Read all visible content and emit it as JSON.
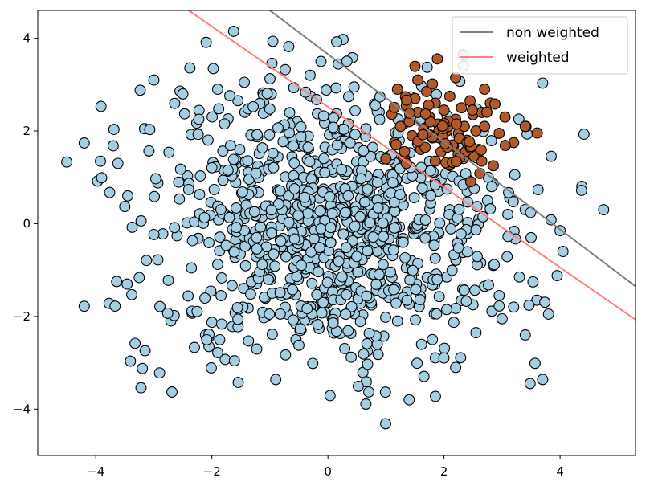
{
  "chart_data": {
    "type": "scatter",
    "title": "",
    "xlabel": "",
    "ylabel": "",
    "xlim": [
      -5.0,
      5.3
    ],
    "ylim": [
      -5.0,
      4.6
    ],
    "x_ticks": [
      -4,
      -2,
      0,
      2,
      4
    ],
    "y_ticks": [
      -4,
      -2,
      0,
      2,
      4
    ],
    "x_tick_labels": [
      "−4",
      "−2",
      "0",
      "2",
      "4"
    ],
    "y_tick_labels": [
      "−4",
      "−2",
      "0",
      "2",
      "4"
    ],
    "grid": false,
    "legend_position": "top-right",
    "colors": {
      "class_0": "#a6cee3",
      "class_1": "#b15928",
      "non_weighted": "#808080",
      "weighted": "#ff7f7f"
    },
    "lines": [
      {
        "name": "non weighted",
        "points": [
          [
            -1.0,
            4.6
          ],
          [
            5.3,
            -1.35
          ]
        ]
      },
      {
        "name": "weighted",
        "points": [
          [
            -2.4,
            4.6
          ],
          [
            5.3,
            -2.07
          ]
        ]
      }
    ],
    "series": [
      {
        "name": "",
        "class": 0,
        "n_points": 1000,
        "center": [
          0.0,
          0.0
        ],
        "std": 1.5,
        "points": [
          [
            -4.5,
            1.33
          ],
          [
            -4.2,
            1.74
          ],
          [
            -4.2,
            -1.78
          ],
          [
            -3.97,
            0.92
          ],
          [
            -3.9,
            0.99
          ],
          [
            -3.77,
            -1.72
          ],
          [
            -3.7,
            1.68
          ],
          [
            -3.62,
            1.3
          ],
          [
            -3.5,
            0.37
          ],
          [
            -3.45,
            0.6
          ],
          [
            -3.38,
            -1.53
          ],
          [
            -3.22,
            0.06
          ],
          [
            -3.16,
            2.05
          ],
          [
            -3.15,
            -2.74
          ],
          [
            -3.0,
            3.1
          ],
          [
            -2.93,
            -0.78
          ],
          [
            -2.93,
            0.88
          ],
          [
            -2.75,
            -1.22
          ],
          [
            -2.6,
            -0.26
          ],
          [
            -2.55,
            2.86
          ],
          [
            -2.5,
            2.8
          ],
          [
            -2.42,
            1.03
          ],
          [
            -2.38,
            3.36
          ],
          [
            -2.34,
            -1.93
          ],
          [
            -2.3,
            -2.67
          ],
          [
            -2.26,
            2.17
          ],
          [
            -2.21,
            0.63
          ],
          [
            -2.11,
            -2.4
          ],
          [
            -2.05,
            -2.65
          ],
          [
            -1.98,
            1.32
          ],
          [
            -1.9,
            2.9
          ],
          [
            -1.83,
            -1.17
          ],
          [
            -1.77,
            -2.93
          ],
          [
            -1.72,
            2.26
          ],
          [
            -1.6,
            -1.92
          ],
          [
            -1.52,
            1.6
          ],
          [
            -1.44,
            3.05
          ],
          [
            -1.3,
            -0.43
          ],
          [
            -1.18,
            0.15
          ],
          [
            -1.12,
            2.82
          ],
          [
            -1.05,
            2.42
          ],
          [
            -1.0,
            -0.83
          ],
          [
            -0.94,
            1.36
          ],
          [
            -0.9,
            -3.36
          ],
          [
            -0.87,
            0.73
          ],
          [
            -0.8,
            -1.55
          ],
          [
            -0.73,
            -2.83
          ],
          [
            -0.66,
            1.74
          ],
          [
            -0.6,
            -0.17
          ],
          [
            -0.55,
            -2.5
          ],
          [
            -0.5,
            1.15
          ],
          [
            -0.45,
            0.45
          ],
          [
            -0.4,
            -1.06
          ],
          [
            -0.35,
            -2.08
          ],
          [
            -0.3,
            2.75
          ],
          [
            -0.25,
            0.94
          ],
          [
            -0.2,
            -0.5
          ],
          [
            -0.12,
            3.5
          ],
          [
            -0.1,
            -1.58
          ],
          [
            -0.05,
            1.65
          ],
          [
            0.0,
            0.2
          ],
          [
            0.05,
            -0.88
          ],
          [
            0.1,
            -2.36
          ],
          [
            0.15,
            2.37
          ],
          [
            0.2,
            0.66
          ],
          [
            0.25,
            -1.3
          ],
          [
            0.3,
            1.06
          ],
          [
            0.35,
            -0.22
          ],
          [
            0.4,
            -2.88
          ],
          [
            0.45,
            2.95
          ],
          [
            0.5,
            -0.62
          ],
          [
            0.55,
            0.98
          ],
          [
            0.6,
            -1.97
          ],
          [
            0.65,
            1.88
          ],
          [
            0.7,
            0.33
          ],
          [
            0.75,
            -1.08
          ],
          [
            0.8,
            2.58
          ],
          [
            0.85,
            -2.6
          ],
          [
            0.9,
            0.09
          ],
          [
            0.95,
            1.4
          ],
          [
            1.0,
            -0.46
          ],
          [
            1.05,
            -1.59
          ],
          [
            1.1,
            0.8
          ],
          [
            1.2,
            -2.1
          ],
          [
            1.25,
            0.45
          ],
          [
            1.3,
            2.15
          ],
          [
            1.35,
            -0.95
          ],
          [
            1.4,
            -3.8
          ],
          [
            1.5,
            1.1
          ],
          [
            1.55,
            -0.2
          ],
          [
            1.6,
            -1.4
          ],
          [
            1.7,
            0.65
          ],
          [
            1.8,
            -2.5
          ],
          [
            1.85,
            -0.75
          ],
          [
            1.95,
            0.95
          ],
          [
            2.05,
            -1.15
          ],
          [
            2.1,
            0.3
          ],
          [
            2.2,
            -3.1
          ],
          [
            2.3,
            -0.35
          ],
          [
            2.4,
            0.7
          ],
          [
            2.5,
            -1.75
          ],
          [
            2.55,
            -2.35
          ],
          [
            2.6,
            0.1
          ],
          [
            2.7,
            -1.35
          ],
          [
            2.75,
            0.5
          ],
          [
            2.85,
            -0.9
          ],
          [
            2.95,
            -1.55
          ],
          [
            3.0,
            -2.05
          ],
          [
            3.1,
            0.2
          ],
          [
            3.2,
            -1.8
          ],
          [
            3.3,
            -1.15
          ],
          [
            3.4,
            -2.4
          ],
          [
            3.5,
            -0.3
          ],
          [
            3.6,
            -1.65
          ],
          [
            3.7,
            -3.36
          ],
          [
            3.8,
            -1.95
          ],
          [
            3.95,
            -1.12
          ],
          [
            4.0,
            -0.15
          ],
          [
            4.05,
            -0.6
          ],
          [
            4.75,
            0.3
          ]
        ]
      },
      {
        "name": "",
        "class": 1,
        "n_points": 100,
        "center": [
          2.0,
          2.0
        ],
        "std": 0.5,
        "points": [
          [
            1.1,
            2.36
          ],
          [
            1.15,
            1.75
          ],
          [
            1.2,
            2.9
          ],
          [
            1.25,
            2.1
          ],
          [
            1.3,
            1.45
          ],
          [
            1.35,
            2.55
          ],
          [
            1.4,
            2.2
          ],
          [
            1.45,
            1.9
          ],
          [
            1.5,
            2.7
          ],
          [
            1.55,
            2.4
          ],
          [
            1.6,
            1.6
          ],
          [
            1.65,
            2.05
          ],
          [
            1.7,
            2.85
          ],
          [
            1.75,
            2.3
          ],
          [
            1.8,
            1.85
          ],
          [
            1.85,
            2.6
          ],
          [
            1.9,
            2.15
          ],
          [
            1.95,
            1.55
          ],
          [
            2.0,
            2.45
          ],
          [
            2.05,
            2.0
          ],
          [
            2.1,
            2.75
          ],
          [
            2.15,
            1.7
          ],
          [
            2.2,
            2.25
          ],
          [
            2.25,
            1.95
          ],
          [
            2.3,
            2.5
          ],
          [
            2.35,
            2.1
          ],
          [
            2.4,
            1.8
          ],
          [
            2.45,
            2.65
          ],
          [
            2.5,
            2.35
          ],
          [
            2.55,
            2.0
          ],
          [
            2.6,
            1.6
          ],
          [
            2.65,
            2.4
          ],
          [
            2.7,
            2.1
          ],
          [
            2.8,
            2.6
          ],
          [
            2.85,
            1.25
          ],
          [
            2.95,
            1.95
          ],
          [
            3.05,
            2.3
          ],
          [
            3.2,
            1.75
          ],
          [
            3.4,
            2.1
          ],
          [
            1.85,
            1.35
          ],
          [
            2.05,
            1.3
          ],
          [
            2.35,
            1.45
          ],
          [
            2.65,
            1.35
          ],
          [
            1.55,
            3.1
          ],
          [
            2.2,
            3.15
          ],
          [
            1.0,
            1.4
          ],
          [
            2.7,
            2.9
          ],
          [
            1.35,
            1.3
          ]
        ]
      }
    ]
  }
}
